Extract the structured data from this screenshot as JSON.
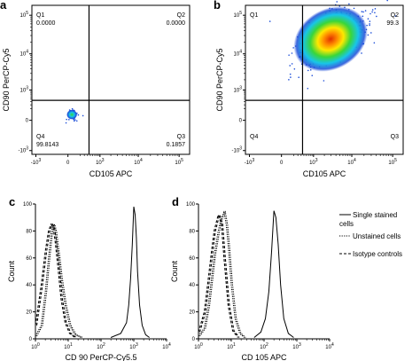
{
  "figure": {
    "panels": [
      "a",
      "b",
      "c",
      "d"
    ]
  },
  "chart_data": [
    {
      "id": "a",
      "type": "scatter",
      "panel_label": "a",
      "xlabel": "CD105 APC",
      "ylabel": "CD90 PerCP-Cy5",
      "x_scale": "biexponential",
      "y_scale": "biexponential",
      "x_ticks": [
        "-10^3",
        "0",
        "10^3",
        "10^4",
        "10^5"
      ],
      "y_ticks": [
        "-10^3",
        "0",
        "10^3",
        "10^4",
        "10^5"
      ],
      "gate_x": 450,
      "gate_y": 450,
      "quadrants": [
        {
          "name": "Q1",
          "value": "0.0000"
        },
        {
          "name": "Q2",
          "value": "0.0000"
        },
        {
          "name": "Q3",
          "value": "0.1857"
        },
        {
          "name": "Q4",
          "value": "99.8143"
        }
      ],
      "population": {
        "center_x": 50,
        "center_y": 80,
        "spread": "tight cluster near origin"
      }
    },
    {
      "id": "b",
      "type": "scatter",
      "panel_label": "b",
      "xlabel": "CD105 APC",
      "ylabel": "CD90 PerCP-Cy5",
      "x_scale": "biexponential",
      "y_scale": "biexponential",
      "x_ticks": [
        "-10^3",
        "0",
        "10^3",
        "10^4",
        "10^5"
      ],
      "y_ticks": [
        "-10^3",
        "0",
        "10^3",
        "10^4",
        "10^5"
      ],
      "gate_x": 450,
      "gate_y": 450,
      "quadrants": [
        {
          "name": "Q1",
          "value": ""
        },
        {
          "name": "Q2",
          "value": "99.3"
        },
        {
          "name": "Q3",
          "value": ""
        },
        {
          "name": "Q4",
          "value": ""
        }
      ],
      "population": {
        "center_x": 4000,
        "center_y": 30000,
        "spread": "dense cloud in Q2"
      }
    },
    {
      "id": "c",
      "type": "line",
      "panel_label": "c",
      "xlabel": "CD 90 PerCP-Cy5.5",
      "ylabel": "Count",
      "x_scale": "log",
      "xlim": [
        1,
        10000
      ],
      "ylim": [
        0,
        100
      ],
      "x_ticks": [
        "10^0",
        "10^1",
        "10^2",
        "10^3",
        "10^4"
      ],
      "y_ticks": [
        "0",
        "20",
        "40",
        "60",
        "80",
        "100"
      ],
      "series": [
        {
          "name": "Single stained cells",
          "style": "solid",
          "x": [
            200,
            400,
            600,
            700,
            800,
            900,
            1000,
            1100,
            1200,
            1300,
            1500,
            1800,
            2300,
            3000
          ],
          "y": [
            1,
            4,
            12,
            25,
            45,
            70,
            98,
            92,
            75,
            50,
            25,
            10,
            3,
            1
          ]
        },
        {
          "name": "Unstained cells",
          "style": "dotted",
          "x": [
            1,
            1.5,
            2,
            2.5,
            3,
            3.5,
            4,
            4.5,
            5,
            6,
            8,
            11,
            16,
            25
          ],
          "y": [
            2,
            10,
            35,
            60,
            78,
            85,
            80,
            70,
            62,
            45,
            25,
            10,
            3,
            1
          ]
        },
        {
          "name": "Isotype controls",
          "style": "dashed",
          "x": [
            1,
            1.5,
            2,
            2.5,
            3,
            3.5,
            4,
            5,
            6,
            8,
            11,
            16
          ],
          "y": [
            10,
            40,
            65,
            80,
            85,
            82,
            72,
            50,
            30,
            12,
            4,
            1
          ]
        }
      ]
    },
    {
      "id": "d",
      "type": "line",
      "panel_label": "d",
      "xlabel": "CD 105 APC",
      "ylabel": "Count",
      "x_scale": "log",
      "xlim": [
        1,
        10000
      ],
      "ylim": [
        0,
        100
      ],
      "x_ticks": [
        "10^0",
        "10^1",
        "10^2",
        "10^3",
        "10^4"
      ],
      "y_ticks": [
        "0",
        "20",
        "40",
        "60",
        "80",
        "100"
      ],
      "series": [
        {
          "name": "Single stained cells",
          "style": "solid",
          "x": [
            50,
            80,
            110,
            140,
            170,
            200,
            230,
            270,
            320,
            400,
            550,
            800
          ],
          "y": [
            1,
            5,
            15,
            35,
            65,
            95,
            90,
            70,
            40,
            15,
            4,
            1
          ]
        },
        {
          "name": "Unstained cells",
          "style": "dotted",
          "x": [
            1,
            1.5,
            2,
            2.5,
            3,
            4,
            5,
            6,
            7,
            8,
            10,
            13,
            18,
            25
          ],
          "y": [
            2,
            8,
            25,
            45,
            62,
            80,
            90,
            94,
            85,
            70,
            40,
            15,
            4,
            1
          ]
        },
        {
          "name": "Isotype controls",
          "style": "dashed",
          "x": [
            1,
            1.5,
            2,
            2.5,
            3,
            4,
            5,
            6,
            8,
            11,
            16
          ],
          "y": [
            5,
            20,
            45,
            65,
            80,
            92,
            85,
            60,
            25,
            6,
            1
          ]
        }
      ]
    }
  ],
  "legend": [
    {
      "label": "Single stained cells",
      "style": "solid"
    },
    {
      "label": "Unstained cells",
      "style": "dotted"
    },
    {
      "label": "Isotype controls",
      "style": "dashed"
    }
  ]
}
